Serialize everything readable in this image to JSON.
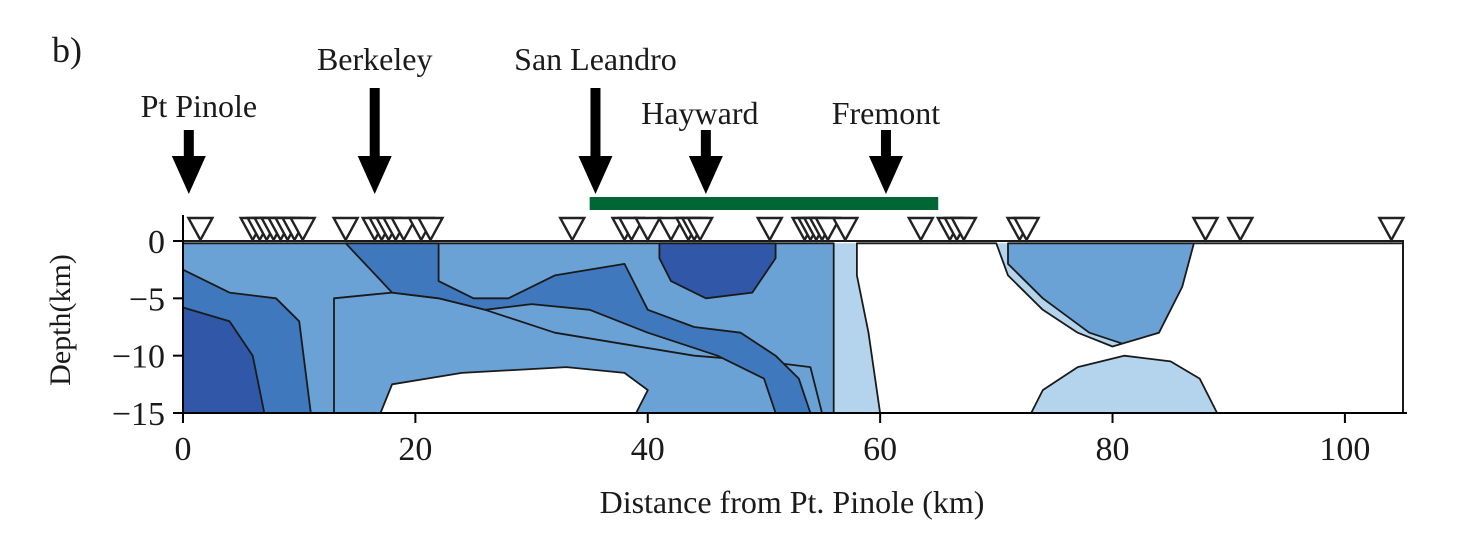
{
  "panel_label": "b)",
  "colors": {
    "level1": "#b4d4ee",
    "level2": "#6aa2d6",
    "level3": "#3f78bd",
    "level4": "#3158a8",
    "outline": "#1a1a1a",
    "green_bar": "#006633",
    "arrow": "#000000",
    "station_outline": "#222222"
  },
  "chart_data": {
    "type": "heatmap",
    "subtype": "filled-contour cross-section",
    "title": "",
    "xlabel": "Distance from Pt. Pinole (km)",
    "ylabel": "Depth(km)",
    "xlim": [
      0,
      105
    ],
    "ylim": [
      -15,
      0
    ],
    "x_ticks": [
      0,
      20,
      40,
      60,
      80,
      100
    ],
    "x_tick_labels": [
      "0",
      "20",
      "40",
      "60",
      "80",
      "100"
    ],
    "y_ticks": [
      0,
      -5,
      -10,
      -15
    ],
    "y_tick_labels": [
      "0",
      "−5",
      "−10",
      "−15"
    ],
    "grid": false,
    "legend": "none",
    "contour_levels": [
      {
        "level": 1,
        "color": "#b4d4ee",
        "polygon": [
          [
            0,
            -0.2
          ],
          [
            105,
            -0.2
          ],
          [
            105,
            -15
          ],
          [
            0,
            -15
          ]
        ]
      },
      {
        "level": 2,
        "color": "#6aa2d6",
        "polygon": [
          [
            0,
            -0.2
          ],
          [
            56,
            -0.2
          ],
          [
            56,
            -15
          ],
          [
            13,
            -15
          ],
          [
            13,
            -5
          ],
          [
            18,
            -4.5
          ],
          [
            22,
            -5
          ],
          [
            26,
            -6
          ],
          [
            32,
            -8
          ],
          [
            38,
            -9
          ],
          [
            44,
            -10
          ],
          [
            50,
            -10.5
          ],
          [
            54,
            -11
          ],
          [
            55,
            -15
          ],
          [
            0,
            -15
          ]
        ]
      },
      {
        "level": 2,
        "color": "#6aa2d6",
        "polygon": [
          [
            71,
            -0.2
          ],
          [
            87,
            -0.2
          ],
          [
            86,
            -5
          ],
          [
            84,
            -8
          ],
          [
            81,
            -9
          ],
          [
            78,
            -8
          ],
          [
            74,
            -5
          ],
          [
            71,
            -2
          ]
        ]
      },
      {
        "level": 3,
        "color": "#3f78bd",
        "polygon": [
          [
            0,
            -2.5
          ],
          [
            4,
            -4.5
          ],
          [
            8,
            -5
          ],
          [
            10,
            -7
          ],
          [
            11,
            -15
          ],
          [
            0,
            -15
          ]
        ]
      },
      {
        "level": 3,
        "color": "#3f78bd",
        "polygon": [
          [
            14,
            -0.2
          ],
          [
            22,
            -0.2
          ],
          [
            22,
            -3.5
          ],
          [
            25,
            -5
          ],
          [
            28,
            -5
          ],
          [
            32,
            -3
          ],
          [
            38,
            -2
          ],
          [
            40,
            -6
          ],
          [
            44,
            -7.5
          ],
          [
            48,
            -8
          ],
          [
            51,
            -10
          ],
          [
            53,
            -12
          ],
          [
            54,
            -15
          ],
          [
            51,
            -15
          ],
          [
            50,
            -12
          ],
          [
            46,
            -10
          ],
          [
            40,
            -8
          ],
          [
            35,
            -6
          ],
          [
            30,
            -5.5
          ],
          [
            26,
            -6
          ],
          [
            22,
            -5
          ],
          [
            18,
            -4.5
          ]
        ]
      },
      {
        "level": 4,
        "color": "#3158a8",
        "polygon": [
          [
            0,
            -5.8
          ],
          [
            4,
            -7
          ],
          [
            6,
            -10
          ],
          [
            7,
            -15
          ],
          [
            0,
            -15
          ]
        ]
      },
      {
        "level": 4,
        "color": "#3158a8",
        "polygon": [
          [
            41,
            -0.2
          ],
          [
            51,
            -0.2
          ],
          [
            51,
            -1.5
          ],
          [
            49,
            -4.5
          ],
          [
            45,
            -5
          ],
          [
            42,
            -3.5
          ],
          [
            41,
            -1.5
          ]
        ]
      }
    ],
    "blank_regions": [
      {
        "polygon": [
          [
            17,
            -15
          ],
          [
            18,
            -12.5
          ],
          [
            24,
            -11.5
          ],
          [
            33,
            -11
          ],
          [
            38,
            -11.5
          ],
          [
            40,
            -13
          ],
          [
            39,
            -15
          ]
        ]
      },
      {
        "polygon": [
          [
            58,
            -0.2
          ],
          [
            70,
            -0.2
          ],
          [
            71,
            -3
          ],
          [
            74,
            -6
          ],
          [
            77,
            -8
          ],
          [
            80,
            -9.2
          ],
          [
            84,
            -8
          ],
          [
            86,
            -4
          ],
          [
            87,
            -0.2
          ],
          [
            105,
            -0.2
          ],
          [
            105,
            -15
          ],
          [
            89,
            -15
          ],
          [
            87.5,
            -12
          ],
          [
            85,
            -10.5
          ],
          [
            81,
            -10
          ],
          [
            77,
            -11
          ],
          [
            74,
            -13
          ],
          [
            73,
            -15
          ],
          [
            60,
            -15
          ],
          [
            59,
            -8
          ],
          [
            58,
            -3
          ]
        ]
      }
    ],
    "location_arrows": [
      {
        "name": "Pt Pinole",
        "x": 0.5,
        "label": "Pt Pinole",
        "tier": "low"
      },
      {
        "name": "Berkeley",
        "x": 16.5,
        "label": "Berkeley",
        "tier": "high"
      },
      {
        "name": "San Leandro",
        "x": 35.5,
        "label": "San Leandro",
        "tier": "high"
      },
      {
        "name": "Hayward",
        "x": 45,
        "label": "Hayward",
        "tier": "mid"
      },
      {
        "name": "Fremont",
        "x": 60.5,
        "label": "Fremont",
        "tier": "mid"
      }
    ],
    "segment_bar": {
      "x_start": 35,
      "x_end": 65,
      "color": "#006633"
    },
    "stations_x": [
      1.5,
      6,
      6.6,
      7.2,
      7.8,
      8.4,
      9,
      9.6,
      10.3,
      14,
      16.5,
      17.1,
      17.7,
      18.3,
      19,
      20.5,
      21.3,
      33.5,
      38,
      38.6,
      40,
      42,
      43.5,
      44,
      44.5,
      50.5,
      53.5,
      54,
      54.5,
      55,
      55.5,
      57,
      63.5,
      66,
      66.6,
      67.2,
      72,
      72.6,
      88,
      91,
      104
    ]
  }
}
